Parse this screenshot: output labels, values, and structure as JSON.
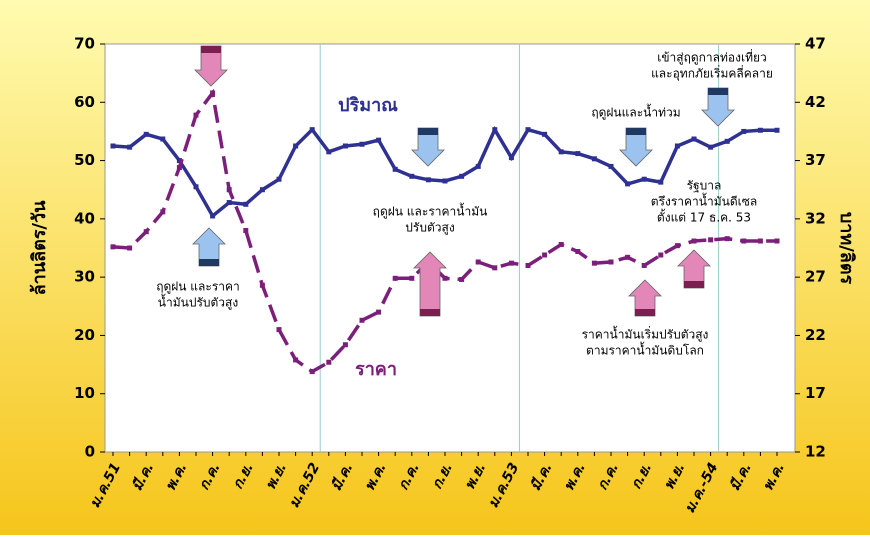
{
  "chart_data": {
    "type": "line",
    "ylabel": "ล้านลิตร/วัน",
    "y2label": "บาท/ลิตร",
    "categories": [
      "ม.ค.51",
      null,
      "มี.ค.",
      null,
      "พ.ค.",
      null,
      "ก.ค.",
      null,
      "ก.ย.",
      null,
      "พ.ย.",
      null,
      "ม.ค.52",
      null,
      "มี.ค.",
      null,
      "พ.ค.",
      null,
      "ก.ค.",
      null,
      "ก.ย.",
      null,
      "พ.ย.",
      null,
      "ม.ค.53",
      null,
      "มี.ค.",
      null,
      "พ.ค.",
      null,
      "ก.ค.",
      null,
      "ก.ย.",
      null,
      "พ.ย.",
      null,
      "ม.ค.-54",
      null,
      "มี.ค.",
      null,
      "พ.ค."
    ],
    "series": [
      {
        "name": "ปริมาณ",
        "color": "#2e3192",
        "dashed": false,
        "values": [
          52.5,
          52.3,
          54.5,
          53.7,
          50,
          45.5,
          40.5,
          42.8,
          42.5,
          45,
          46.8,
          52.5,
          55.3,
          51.5,
          52.5,
          52.8,
          53.5,
          48.5,
          47.3,
          46.7,
          46.5,
          47.3,
          49,
          55.3,
          50.5,
          55.3,
          54.5,
          51.5,
          51.2,
          50.3,
          49,
          46,
          46.8,
          46.3,
          52.5,
          53.7,
          52.3,
          53.3,
          55,
          55.2,
          55.2
        ]
      },
      {
        "name": "ราคา",
        "color": "#7b1f7b",
        "dashed": true,
        "axis": "y2",
        "values": [
          29.6,
          29.5,
          30.9,
          32.6,
          36.4,
          40.9,
          42.8,
          34.5,
          31,
          26.3,
          22.5,
          19.9,
          18.9,
          19.7,
          21.2,
          23.3,
          24,
          26.9,
          26.9,
          28.3,
          26.9,
          26.8,
          28.3,
          27.8,
          28.2,
          28,
          28.9,
          29.8,
          29.2,
          28.2,
          28.3,
          28.7,
          28,
          28.9,
          29.7,
          30.1,
          30.2,
          30.3,
          30.1,
          30.1,
          30.1
        ]
      }
    ],
    "ylim": [
      0,
      70
    ],
    "yticks": [
      0,
      10,
      20,
      30,
      40,
      50,
      60,
      70
    ],
    "y2lim": [
      12,
      47
    ],
    "y2ticks": [
      12,
      17,
      22,
      27,
      32,
      37,
      42,
      47
    ],
    "annotations": [
      {
        "lines": [
          "เข้าสู่ฤดูกาลท่องเที่ยว",
          "และอุทกภัยเริ่มคลี่คลาย"
        ]
      },
      {
        "lines": [
          "ฤดูฝนและน้ำท่วม"
        ]
      },
      {
        "lines": [
          "รัฐบาล",
          "ตรึงราคาน้ำมันดีเซล",
          "ตั้งแต่ 17 ธ.ค. 53"
        ]
      },
      {
        "lines": [
          "ฤดูฝน และราคาน้ำมัน",
          "ปรับตัวสูง"
        ]
      },
      {
        "lines": [
          "ฤดูฝน และราคา",
          "น้ำมันปรับตัวสูง"
        ]
      },
      {
        "lines": [
          "ราคาน้ำมันเริ่มปรับตัวสูง",
          "ตามราคาน้ำมันดิบโลก"
        ]
      }
    ]
  }
}
